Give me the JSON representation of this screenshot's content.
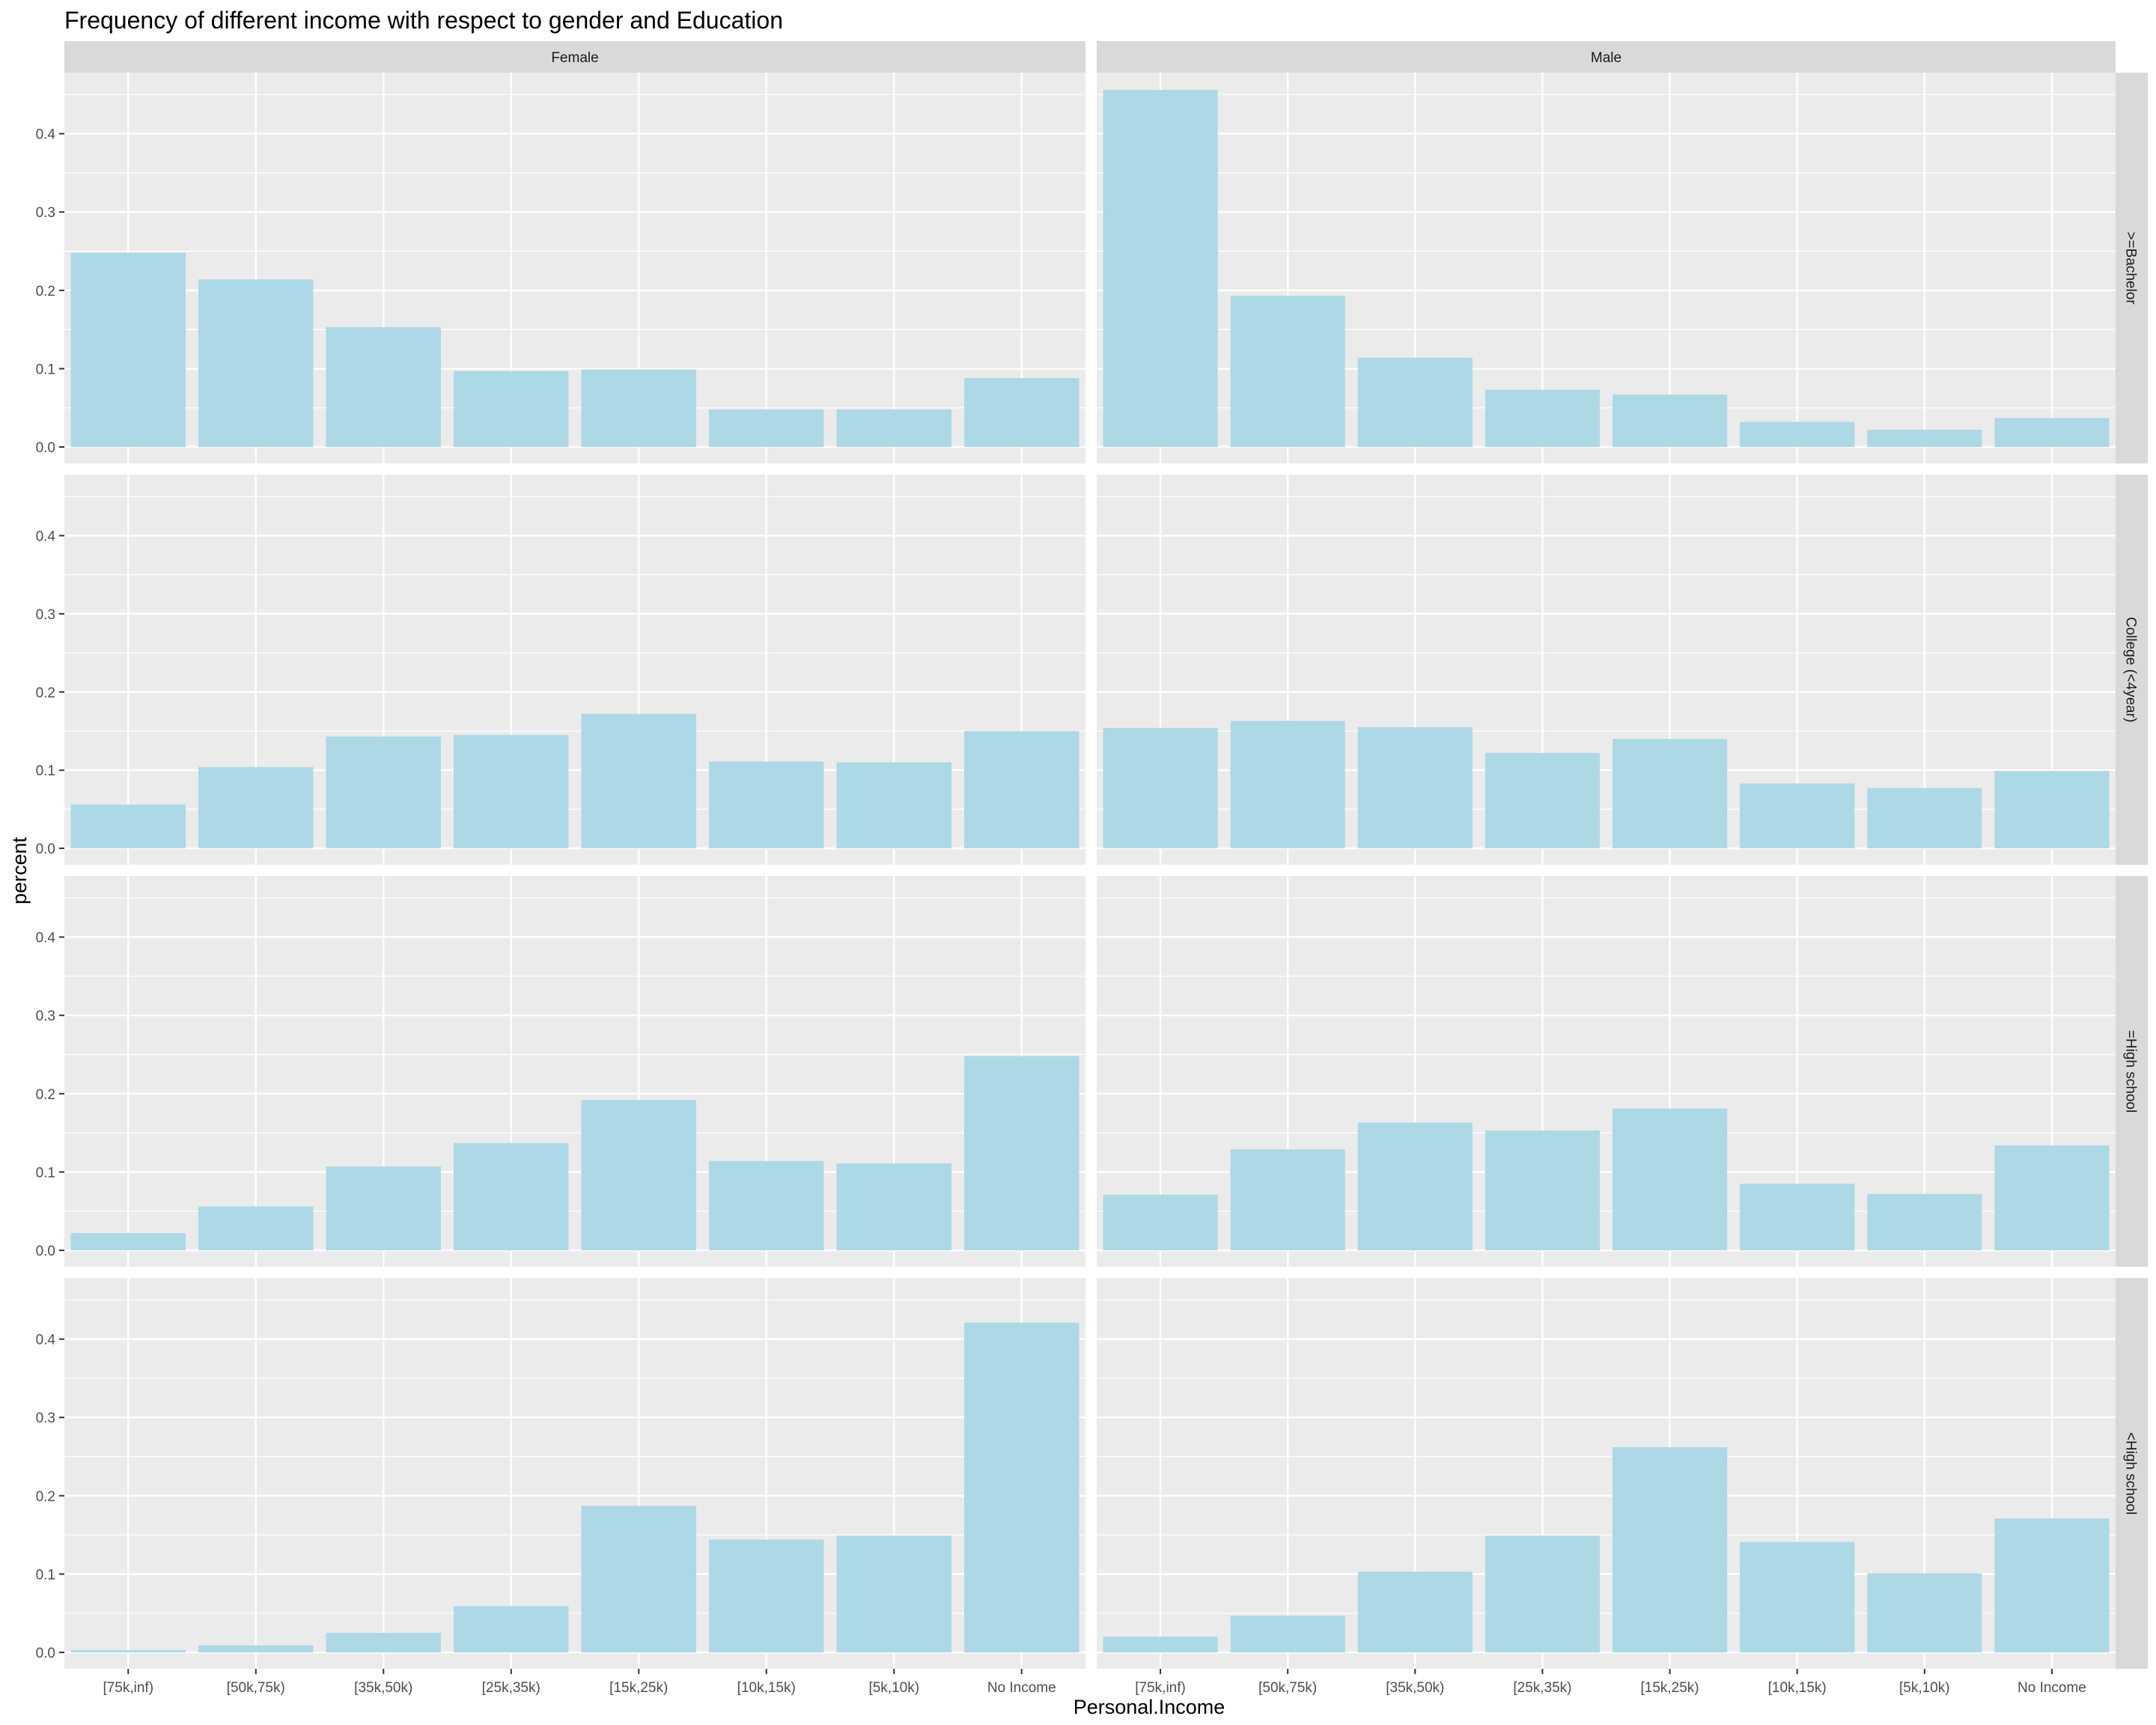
{
  "chart_data": {
    "type": "bar",
    "title": "Frequency of different income with respect to gender and Education",
    "xlabel": "Personal.Income",
    "ylabel": "percent",
    "categories": [
      "[75k,inf)",
      "[50k,75k)",
      "[35k,50k)",
      "[25k,35k)",
      "[15k,25k)",
      "[10k,15k)",
      "[5k,10k)",
      "No Income"
    ],
    "columns": [
      "Female",
      "Male"
    ],
    "rows": [
      ">=Bachelor",
      "College (<4year)",
      "=High school",
      "<High school"
    ],
    "y_ticks": [
      "0.0",
      "0.1",
      "0.2",
      "0.3",
      "0.4"
    ],
    "ylim": [
      -0.021,
      0.478
    ],
    "grid": true,
    "bar_color": "#add8e6",
    "panel_background": "#ebebeb",
    "strip_background": "#d9d9d9",
    "panels": [
      {
        "column": "Female",
        "row": ">=Bachelor",
        "values": [
          0.248,
          0.214,
          0.153,
          0.097,
          0.099,
          0.048,
          0.048,
          0.088
        ]
      },
      {
        "column": "Male",
        "row": ">=Bachelor",
        "values": [
          0.456,
          0.193,
          0.114,
          0.073,
          0.067,
          0.032,
          0.022,
          0.037
        ]
      },
      {
        "column": "Female",
        "row": "College (<4year)",
        "values": [
          0.056,
          0.104,
          0.143,
          0.145,
          0.172,
          0.111,
          0.11,
          0.15
        ]
      },
      {
        "column": "Male",
        "row": "College (<4year)",
        "values": [
          0.154,
          0.163,
          0.155,
          0.122,
          0.14,
          0.083,
          0.077,
          0.099
        ]
      },
      {
        "column": "Female",
        "row": "=High school",
        "values": [
          0.022,
          0.056,
          0.107,
          0.137,
          0.192,
          0.114,
          0.111,
          0.248
        ]
      },
      {
        "column": "Male",
        "row": "=High school",
        "values": [
          0.071,
          0.129,
          0.163,
          0.153,
          0.181,
          0.085,
          0.072,
          0.134
        ]
      },
      {
        "column": "Female",
        "row": "<High school",
        "values": [
          0.003,
          0.009,
          0.025,
          0.059,
          0.187,
          0.144,
          0.149,
          0.421
        ]
      },
      {
        "column": "Male",
        "row": "<High school",
        "values": [
          0.02,
          0.047,
          0.103,
          0.149,
          0.262,
          0.141,
          0.101,
          0.171
        ]
      }
    ]
  }
}
